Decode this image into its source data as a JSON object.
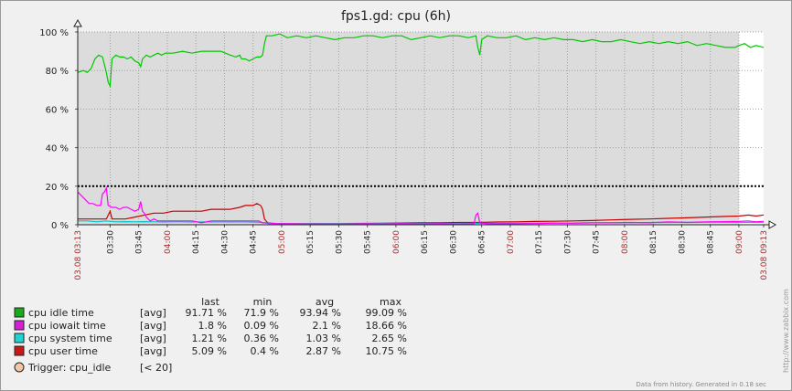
{
  "chart_data": {
    "type": "line",
    "title": "fps1.gd: cpu  (6h)",
    "ylim": [
      0,
      100
    ],
    "yticks": [
      "0 %",
      "20 %",
      "40 %",
      "60 %",
      "80 %",
      "100 %"
    ],
    "ytick_values": [
      0,
      20,
      40,
      60,
      80,
      100
    ],
    "x_range": [
      "03:13",
      "09:13"
    ],
    "xticks": [
      {
        "label": "03.08 03:13",
        "t": 0,
        "red": true
      },
      {
        "label": "03:30",
        "t": 17
      },
      {
        "label": "03:45",
        "t": 32
      },
      {
        "label": "04:00",
        "t": 47,
        "red": true
      },
      {
        "label": "04:15",
        "t": 62
      },
      {
        "label": "04:30",
        "t": 77
      },
      {
        "label": "04:45",
        "t": 92
      },
      {
        "label": "05:00",
        "t": 107,
        "red": true
      },
      {
        "label": "05:15",
        "t": 122
      },
      {
        "label": "05:30",
        "t": 137
      },
      {
        "label": "05:45",
        "t": 152
      },
      {
        "label": "06:00",
        "t": 167,
        "red": true
      },
      {
        "label": "06:15",
        "t": 182
      },
      {
        "label": "06:30",
        "t": 197
      },
      {
        "label": "06:45",
        "t": 212
      },
      {
        "label": "07:00",
        "t": 227,
        "red": true
      },
      {
        "label": "07:15",
        "t": 242
      },
      {
        "label": "07:30",
        "t": 257
      },
      {
        "label": "07:45",
        "t": 272
      },
      {
        "label": "08:00",
        "t": 287,
        "red": true
      },
      {
        "label": "08:15",
        "t": 302
      },
      {
        "label": "08:30",
        "t": 317
      },
      {
        "label": "08:45",
        "t": 332
      },
      {
        "label": "09:00",
        "t": 347,
        "red": true
      },
      {
        "label": "03.08 09:13",
        "t": 360,
        "red": true
      }
    ],
    "data_end_t": 347,
    "trigger": {
      "name": "Trigger: cpu_idle",
      "condition": "[< 20]",
      "value": 20,
      "color": "#000000"
    },
    "series": [
      {
        "name": "cpu idle time",
        "func": "[avg]",
        "last": "91.71 %",
        "min": "71.9 %",
        "avg": "93.94 %",
        "max": "99.09 %",
        "color": "#00c800",
        "legend_color": "#1aaa1a",
        "points": [
          [
            0,
            79
          ],
          [
            3,
            80
          ],
          [
            5,
            79
          ],
          [
            7,
            81
          ],
          [
            9,
            86
          ],
          [
            11,
            88
          ],
          [
            13,
            87
          ],
          [
            15,
            79
          ],
          [
            16,
            74
          ],
          [
            17,
            72
          ],
          [
            18,
            86
          ],
          [
            20,
            88
          ],
          [
            22,
            87
          ],
          [
            24,
            87
          ],
          [
            26,
            86
          ],
          [
            28,
            87
          ],
          [
            30,
            85
          ],
          [
            32,
            84
          ],
          [
            33,
            82
          ],
          [
            34,
            86
          ],
          [
            36,
            88
          ],
          [
            38,
            87
          ],
          [
            40,
            88
          ],
          [
            42,
            89
          ],
          [
            44,
            88
          ],
          [
            46,
            89
          ],
          [
            50,
            89
          ],
          [
            55,
            90
          ],
          [
            60,
            89
          ],
          [
            65,
            90
          ],
          [
            70,
            90
          ],
          [
            75,
            90
          ],
          [
            80,
            88
          ],
          [
            83,
            87
          ],
          [
            85,
            88
          ],
          [
            86,
            86
          ],
          [
            88,
            86
          ],
          [
            90,
            85
          ],
          [
            92,
            86
          ],
          [
            94,
            87
          ],
          [
            96,
            87
          ],
          [
            97,
            88
          ],
          [
            98,
            94
          ],
          [
            99,
            98
          ],
          [
            102,
            98
          ],
          [
            106,
            99
          ],
          [
            110,
            97
          ],
          [
            115,
            98
          ],
          [
            120,
            97
          ],
          [
            125,
            98
          ],
          [
            130,
            97
          ],
          [
            135,
            96
          ],
          [
            140,
            97
          ],
          [
            145,
            97
          ],
          [
            150,
            98
          ],
          [
            155,
            98
          ],
          [
            160,
            97
          ],
          [
            165,
            98
          ],
          [
            170,
            98
          ],
          [
            175,
            96
          ],
          [
            180,
            97
          ],
          [
            185,
            98
          ],
          [
            190,
            97
          ],
          [
            195,
            98
          ],
          [
            200,
            98
          ],
          [
            205,
            97
          ],
          [
            209,
            98
          ],
          [
            210,
            92
          ],
          [
            211,
            88
          ],
          [
            212,
            96
          ],
          [
            215,
            98
          ],
          [
            220,
            97
          ],
          [
            225,
            97
          ],
          [
            230,
            98
          ],
          [
            235,
            96
          ],
          [
            240,
            97
          ],
          [
            245,
            96
          ],
          [
            250,
            97
          ],
          [
            255,
            96
          ],
          [
            260,
            96
          ],
          [
            265,
            95
          ],
          [
            270,
            96
          ],
          [
            275,
            95
          ],
          [
            280,
            95
          ],
          [
            285,
            96
          ],
          [
            290,
            95
          ],
          [
            295,
            94
          ],
          [
            300,
            95
          ],
          [
            305,
            94
          ],
          [
            310,
            95
          ],
          [
            315,
            94
          ],
          [
            320,
            95
          ],
          [
            325,
            93
          ],
          [
            330,
            94
          ],
          [
            335,
            93
          ],
          [
            340,
            92
          ],
          [
            345,
            92
          ],
          [
            347,
            93
          ],
          [
            350,
            94
          ],
          [
            353,
            92
          ],
          [
            356,
            93
          ],
          [
            360,
            92
          ]
        ]
      },
      {
        "name": "cpu iowait time",
        "func": "[avg]",
        "last": "1.8 %",
        "min": "0.09 %",
        "avg": "2.1 %",
        "max": "18.66 %",
        "color": "#ff00ff",
        "legend_color": "#d420d4",
        "points": [
          [
            0,
            17
          ],
          [
            2,
            15
          ],
          [
            4,
            13
          ],
          [
            6,
            11
          ],
          [
            8,
            11
          ],
          [
            10,
            10
          ],
          [
            12,
            10
          ],
          [
            13,
            16
          ],
          [
            14,
            17
          ],
          [
            15,
            19
          ],
          [
            16,
            10
          ],
          [
            18,
            9
          ],
          [
            20,
            9
          ],
          [
            22,
            8
          ],
          [
            24,
            9
          ],
          [
            26,
            9
          ],
          [
            28,
            8
          ],
          [
            30,
            7
          ],
          [
            32,
            8
          ],
          [
            33,
            12
          ],
          [
            34,
            7
          ],
          [
            35,
            6
          ],
          [
            36,
            4
          ],
          [
            38,
            2
          ],
          [
            40,
            3
          ],
          [
            42,
            2
          ],
          [
            44,
            2
          ],
          [
            46,
            2
          ],
          [
            48,
            2
          ],
          [
            50,
            2
          ],
          [
            55,
            2
          ],
          [
            60,
            2
          ],
          [
            65,
            1
          ],
          [
            70,
            2
          ],
          [
            75,
            2
          ],
          [
            80,
            2
          ],
          [
            85,
            2
          ],
          [
            90,
            2
          ],
          [
            95,
            2
          ],
          [
            97,
            1
          ],
          [
            100,
            1
          ],
          [
            105,
            0.5
          ],
          [
            110,
            0.5
          ],
          [
            120,
            0.4
          ],
          [
            130,
            0.4
          ],
          [
            140,
            0.3
          ],
          [
            150,
            0.5
          ],
          [
            160,
            0.4
          ],
          [
            170,
            0.5
          ],
          [
            180,
            0.4
          ],
          [
            190,
            0.5
          ],
          [
            200,
            0.4
          ],
          [
            208,
            0.5
          ],
          [
            209,
            5
          ],
          [
            210,
            6
          ],
          [
            211,
            1
          ],
          [
            215,
            0.5
          ],
          [
            220,
            0.5
          ],
          [
            230,
            0.5
          ],
          [
            240,
            0.6
          ],
          [
            250,
            0.8
          ],
          [
            260,
            0.8
          ],
          [
            270,
            1
          ],
          [
            280,
            1
          ],
          [
            290,
            1.2
          ],
          [
            300,
            1
          ],
          [
            310,
            1.5
          ],
          [
            320,
            1.2
          ],
          [
            330,
            1.5
          ],
          [
            340,
            1.6
          ],
          [
            347,
            1.7
          ],
          [
            352,
            2
          ],
          [
            356,
            1.5
          ],
          [
            360,
            1.8
          ]
        ]
      },
      {
        "name": "cpu system time",
        "func": "[avg]",
        "last": "1.21 %",
        "min": "0.36 %",
        "avg": "1.03 %",
        "max": "2.65 %",
        "color": "#00c8c8",
        "legend_color": "#20d4d4",
        "points": [
          [
            0,
            2
          ],
          [
            5,
            2
          ],
          [
            10,
            1.5
          ],
          [
            15,
            2
          ],
          [
            20,
            1.5
          ],
          [
            25,
            1.6
          ],
          [
            30,
            1.5
          ],
          [
            35,
            1.6
          ],
          [
            40,
            1.5
          ],
          [
            45,
            1.4
          ],
          [
            50,
            1.5
          ],
          [
            55,
            1.5
          ],
          [
            60,
            1.4
          ],
          [
            65,
            1.5
          ],
          [
            70,
            1.4
          ],
          [
            75,
            1.5
          ],
          [
            80,
            1.4
          ],
          [
            85,
            1.5
          ],
          [
            90,
            1.4
          ],
          [
            97,
            1.2
          ],
          [
            100,
            0.6
          ],
          [
            110,
            0.5
          ],
          [
            120,
            0.5
          ],
          [
            130,
            0.6
          ],
          [
            140,
            0.5
          ],
          [
            150,
            0.6
          ],
          [
            160,
            0.6
          ],
          [
            170,
            0.6
          ],
          [
            180,
            0.6
          ],
          [
            190,
            0.6
          ],
          [
            200,
            0.6
          ],
          [
            210,
            0.7
          ],
          [
            220,
            0.7
          ],
          [
            230,
            0.8
          ],
          [
            240,
            0.8
          ],
          [
            250,
            0.9
          ],
          [
            260,
            0.9
          ],
          [
            270,
            1
          ],
          [
            280,
            1
          ],
          [
            290,
            1.1
          ],
          [
            300,
            1.2
          ],
          [
            310,
            1.2
          ],
          [
            320,
            1.3
          ],
          [
            330,
            1.3
          ],
          [
            340,
            1.3
          ],
          [
            347,
            1.2
          ],
          [
            353,
            1.3
          ],
          [
            360,
            1.2
          ]
        ]
      },
      {
        "name": "cpu user time",
        "func": "[avg]",
        "last": "5.09 %",
        "min": "0.4 %",
        "avg": "2.87 %",
        "max": "10.75 %",
        "color": "#c80000",
        "legend_color": "#c81818",
        "points": [
          [
            0,
            3
          ],
          [
            5,
            3
          ],
          [
            10,
            3
          ],
          [
            15,
            3
          ],
          [
            17,
            7
          ],
          [
            18,
            3
          ],
          [
            20,
            3
          ],
          [
            25,
            3
          ],
          [
            30,
            4
          ],
          [
            35,
            5
          ],
          [
            40,
            6
          ],
          [
            45,
            6
          ],
          [
            50,
            7
          ],
          [
            55,
            7
          ],
          [
            60,
            7
          ],
          [
            65,
            7
          ],
          [
            70,
            8
          ],
          [
            75,
            8
          ],
          [
            80,
            8
          ],
          [
            85,
            9
          ],
          [
            88,
            10
          ],
          [
            90,
            10
          ],
          [
            92,
            10
          ],
          [
            94,
            11
          ],
          [
            96,
            10
          ],
          [
            97,
            8
          ],
          [
            98,
            3
          ],
          [
            100,
            0.6
          ],
          [
            105,
            0.5
          ],
          [
            110,
            0.5
          ],
          [
            115,
            0.5
          ],
          [
            120,
            0.5
          ],
          [
            125,
            0.6
          ],
          [
            130,
            0.5
          ],
          [
            140,
            0.6
          ],
          [
            150,
            0.7
          ],
          [
            160,
            0.8
          ],
          [
            170,
            0.9
          ],
          [
            180,
            1
          ],
          [
            190,
            1
          ],
          [
            200,
            1.2
          ],
          [
            210,
            1.2
          ],
          [
            220,
            1.4
          ],
          [
            230,
            1.5
          ],
          [
            240,
            1.7
          ],
          [
            250,
            1.8
          ],
          [
            260,
            2
          ],
          [
            270,
            2.2
          ],
          [
            280,
            2.5
          ],
          [
            290,
            2.8
          ],
          [
            300,
            3
          ],
          [
            310,
            3.3
          ],
          [
            320,
            3.6
          ],
          [
            330,
            4
          ],
          [
            340,
            4.3
          ],
          [
            347,
            4.5
          ],
          [
            352,
            5
          ],
          [
            356,
            4.5
          ],
          [
            360,
            5.09
          ]
        ]
      }
    ],
    "legend_headers": [
      "last",
      "min",
      "avg",
      "max"
    ],
    "footer": "Data from history. Generated in 0.18 sec",
    "watermark": "http://www.zabbix.com"
  }
}
